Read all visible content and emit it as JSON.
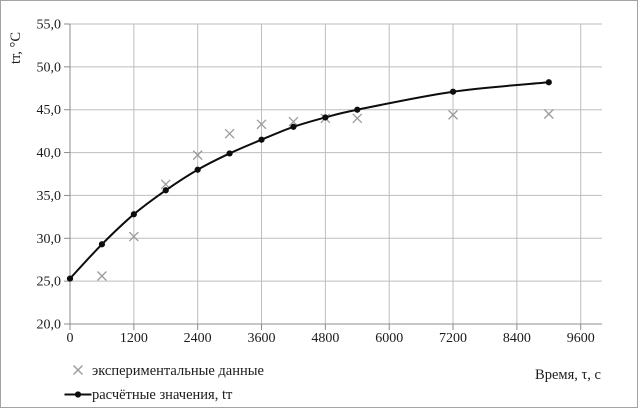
{
  "window": {
    "background": "#ffffff",
    "border_color": "#a3a3a3"
  },
  "chart_data": {
    "type": "line",
    "title": "",
    "xlabel": "Время, τ, с",
    "ylabel": "tт, °C",
    "xlim": [
      0,
      10000
    ],
    "ylim": [
      20,
      55
    ],
    "grid": true,
    "legend_position": "bottom-left",
    "x_ticks": [
      0,
      1200,
      2400,
      3600,
      4800,
      6000,
      7200,
      8400,
      9600
    ],
    "x_tick_labels": [
      "0",
      "1200",
      "2400",
      "3600",
      "4800",
      "6000",
      "7200",
      "8400",
      "9600"
    ],
    "y_ticks": [
      20,
      25,
      30,
      35,
      40,
      45,
      50,
      55
    ],
    "y_tick_labels": [
      "20,0",
      "25,0",
      "30,0",
      "35,0",
      "40,0",
      "45,0",
      "50,0",
      "55,0"
    ],
    "series": [
      {
        "name": "экспериментальные данные",
        "type": "scatter",
        "marker": "x",
        "color": "#9b9b9b",
        "x": [
          600,
          1200,
          1800,
          2400,
          3000,
          3600,
          4200,
          4800,
          5400,
          7200,
          9000
        ],
        "y": [
          25.6,
          30.2,
          36.3,
          39.7,
          42.2,
          43.3,
          43.6,
          44.0,
          44.0,
          44.4,
          44.5
        ]
      },
      {
        "name": "расчётные значения, tт",
        "type": "line-with-markers",
        "marker": "circle",
        "color": "#0d0d0d",
        "x": [
          0,
          600,
          1200,
          1800,
          2400,
          3000,
          3600,
          4200,
          4800,
          5400,
          7200,
          9000
        ],
        "y": [
          25.3,
          29.3,
          32.8,
          35.6,
          38.0,
          39.9,
          41.5,
          43.0,
          44.1,
          45.0,
          47.1,
          48.2
        ]
      }
    ]
  }
}
